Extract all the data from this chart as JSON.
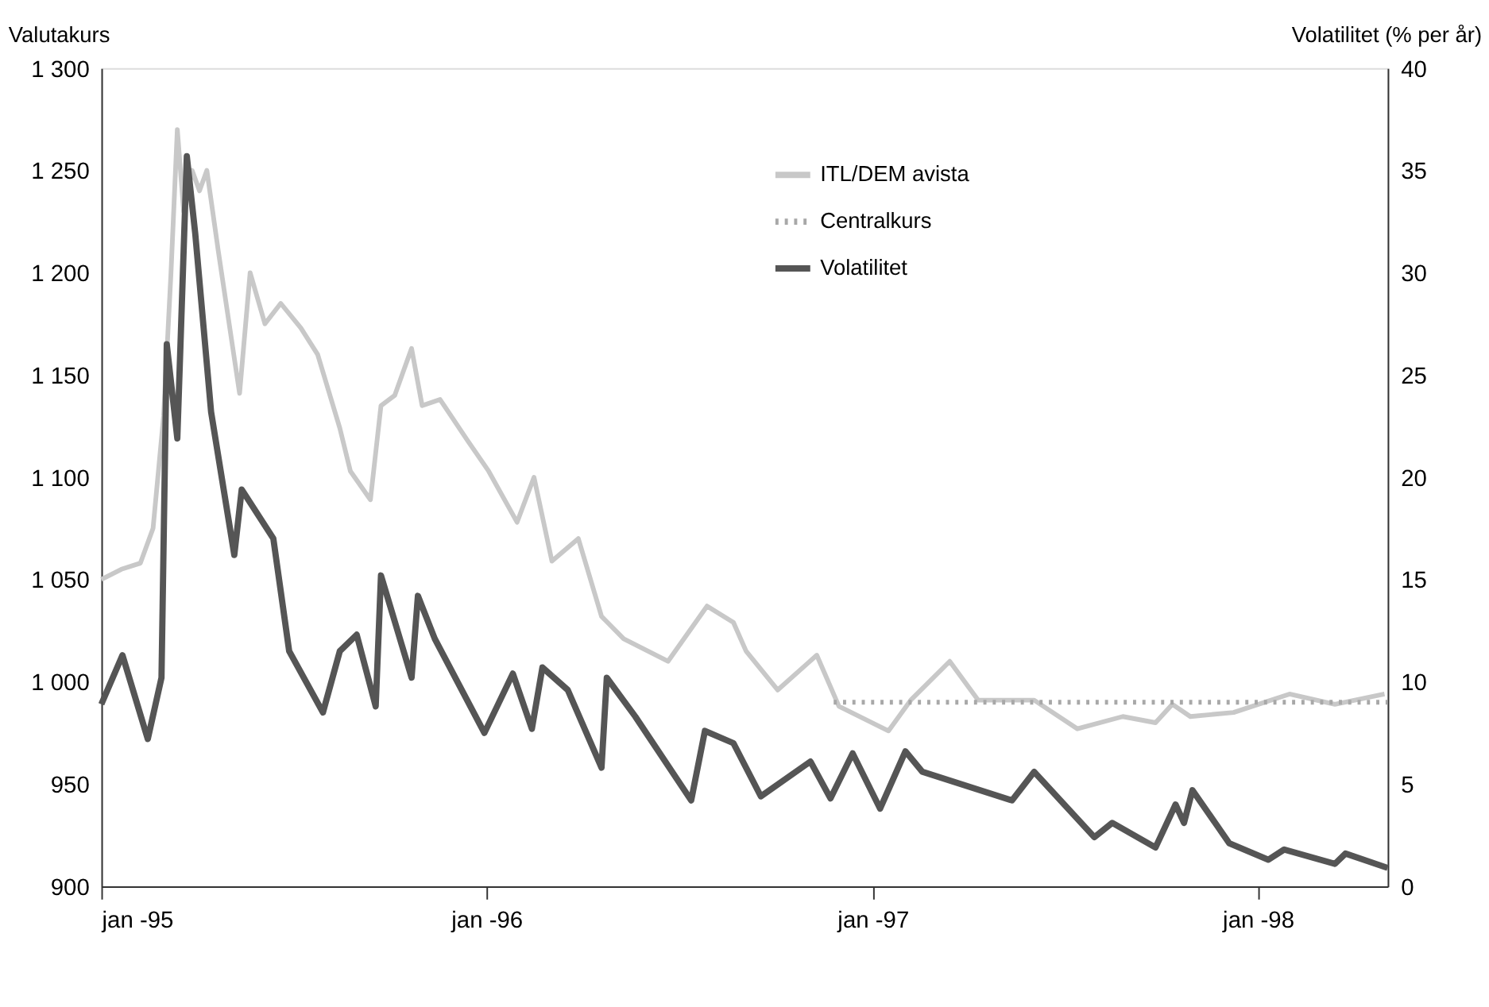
{
  "chart_data": {
    "type": "line",
    "ylabel": "Valutakurs",
    "y2label": "Volatilitet (% per år)",
    "xlim": [
      "1995-01-01",
      "1998-05-04"
    ],
    "xticks": [
      {
        "value": "1995-01-01",
        "label": "jan -95"
      },
      {
        "value": "1996-01-01",
        "label": "jan -96"
      },
      {
        "value": "1997-01-01",
        "label": "jan -97"
      },
      {
        "value": "1998-01-01",
        "label": "jan -98"
      }
    ],
    "ylim": [
      900,
      1300
    ],
    "yticks": [
      900,
      950,
      {
        "value": 1000,
        "label": "1 000"
      },
      {
        "value": 1050,
        "label": "1 050"
      },
      {
        "value": 1100,
        "label": "1 100"
      },
      {
        "value": 1150,
        "label": "1 150"
      },
      {
        "value": 1200,
        "label": "1 200"
      },
      {
        "value": 1250,
        "label": "1 250"
      },
      {
        "value": 1300,
        "label": "1 300"
      }
    ],
    "y2lim": [
      0,
      40
    ],
    "y2ticks": [
      0,
      5,
      10,
      15,
      20,
      25,
      30,
      35,
      40
    ],
    "grid": false,
    "legend": "top right",
    "series": [
      {
        "name": "ITL/DEM avista",
        "color": "#c8c8c8",
        "line_style": "solid",
        "x": [
          "1995-01-01",
          "1995-01-20",
          "1995-02-07",
          "1995-02-19",
          "1995-03-01",
          "1995-03-08",
          "1995-03-14",
          "1995-03-20",
          "1995-03-28",
          "1995-04-04",
          "1995-04-11",
          "1995-04-22",
          "1995-05-12",
          "1995-05-22",
          "1995-06-05",
          "1995-06-20",
          "1995-07-09",
          "1995-07-25",
          "1995-08-15",
          "1995-08-25",
          "1995-09-13",
          "1995-09-23",
          "1995-10-06",
          "1995-10-22",
          "1995-11-01",
          "1995-11-18",
          "1995-12-14",
          "1996-01-03",
          "1996-01-30",
          "1996-02-15",
          "1996-03-03",
          "1996-03-28",
          "1996-04-19",
          "1996-05-10",
          "1996-06-21",
          "1996-07-28",
          "1996-08-22",
          "1996-09-03",
          "1996-10-03",
          "1996-11-09",
          "1996-11-30",
          "1997-01-16",
          "1997-02-06",
          "1997-03-15",
          "1997-04-11",
          "1997-06-03",
          "1997-07-14",
          "1997-08-26",
          "1997-09-26",
          "1997-10-12",
          "1997-10-29",
          "1997-12-09",
          "1998-01-31",
          "1998-03-15",
          "1998-05-01"
        ],
        "values": [
          1050,
          1055,
          1058,
          1075,
          1130,
          1200,
          1270,
          1230,
          1250,
          1240,
          1250,
          1210,
          1141,
          1200,
          1175,
          1185,
          1173,
          1160,
          1124,
          1103,
          1089,
          1135,
          1140,
          1163,
          1135,
          1138,
          1118,
          1103,
          1078,
          1100,
          1059,
          1070,
          1032,
          1021,
          1010,
          1037,
          1029,
          1015,
          996,
          1013,
          988,
          976,
          991,
          1010,
          991,
          991,
          977,
          983,
          980,
          989,
          983,
          985,
          994,
          989,
          994
        ]
      },
      {
        "name": "Centralkurs",
        "color": "#a8a8a8",
        "line_style": "dotted",
        "x": [
          "1996-11-25",
          "1998-05-04"
        ],
        "values": [
          990,
          990
        ]
      },
      {
        "name": "Volatilitet",
        "color": "#555555",
        "line_style": "solid",
        "axis": "y2",
        "x": [
          "1995-01-01",
          "1995-01-21",
          "1995-02-14",
          "1995-02-27",
          "1995-03-04",
          "1995-03-14",
          "1995-03-23",
          "1995-03-31",
          "1995-04-15",
          "1995-05-07",
          "1995-05-14",
          "1995-06-13",
          "1995-06-28",
          "1995-07-30",
          "1995-08-15",
          "1995-08-31",
          "1995-09-18",
          "1995-09-23",
          "1995-10-22",
          "1995-10-28",
          "1995-11-13",
          "1995-12-30",
          "1996-01-26",
          "1996-02-13",
          "1996-02-23",
          "1996-03-18",
          "1996-04-19",
          "1996-04-24",
          "1996-05-21",
          "1996-07-13",
          "1996-07-26",
          "1996-08-22",
          "1996-09-17",
          "1996-11-03",
          "1996-11-22",
          "1996-12-13",
          "1997-01-08",
          "1997-02-01",
          "1997-02-17",
          "1997-05-13",
          "1997-06-03",
          "1997-07-30",
          "1997-08-16",
          "1997-09-26",
          "1997-10-15",
          "1997-10-23",
          "1997-10-31",
          "1997-12-05",
          "1998-01-11",
          "1998-01-26",
          "1998-03-15",
          "1998-03-25",
          "1998-05-04"
        ],
        "values": [
          8.9,
          11.3,
          7.2,
          10.2,
          26.5,
          21.9,
          35.7,
          31.9,
          23.2,
          16.2,
          19.4,
          17,
          11.5,
          8.5,
          11.5,
          12.3,
          8.8,
          15.2,
          10.2,
          14.2,
          12.1,
          7.5,
          10.4,
          7.7,
          10.7,
          9.6,
          5.8,
          10.2,
          8.3,
          4.2,
          7.6,
          7.0,
          4.4,
          6.1,
          4.3,
          6.5,
          3.8,
          6.6,
          5.6,
          4.2,
          5.6,
          2.4,
          3.1,
          1.9,
          4.0,
          3.1,
          4.7,
          2.1,
          1.3,
          1.8,
          1.1,
          1.6,
          0.9
        ]
      }
    ]
  }
}
